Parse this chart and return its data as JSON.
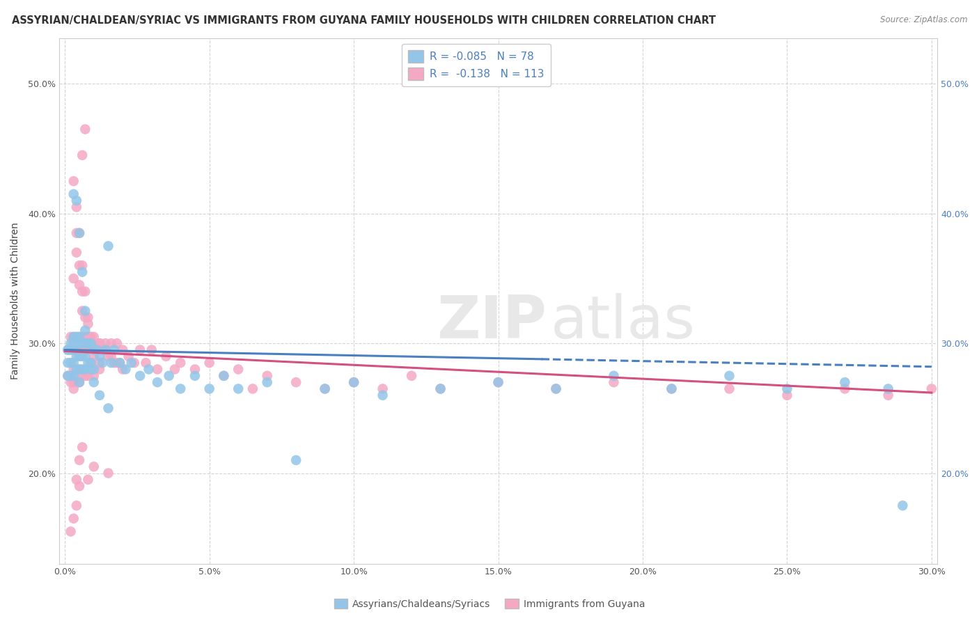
{
  "title": "ASSYRIAN/CHALDEAN/SYRIAC VS IMMIGRANTS FROM GUYANA FAMILY HOUSEHOLDS WITH CHILDREN CORRELATION CHART",
  "source": "Source: ZipAtlas.com",
  "ylabel": "Family Households with Children",
  "xlim": [
    -0.002,
    0.302
  ],
  "ylim": [
    0.13,
    0.535
  ],
  "xtick_vals": [
    0.0,
    0.05,
    0.1,
    0.15,
    0.2,
    0.25,
    0.3
  ],
  "ytick_vals": [
    0.2,
    0.3,
    0.4,
    0.5
  ],
  "series1_label": "Assyrians/Chaldeans/Syriacs",
  "series1_R": -0.085,
  "series1_N": 78,
  "series1_color": "#92C5E8",
  "series1_trend_color": "#4A7FC1",
  "series2_label": "Immigrants from Guyana",
  "series2_R": -0.138,
  "series2_N": 113,
  "series2_color": "#F4A8C4",
  "series2_trend_color": "#D45080",
  "watermark_color": "#e8e8e8",
  "background_color": "#ffffff",
  "grid_color": "#d0d0d0",
  "title_fontsize": 10.5,
  "axis_label_fontsize": 10,
  "tick_fontsize": 9,
  "legend_fontsize": 11,
  "right_tick_color": "#4A7FC1",
  "left_tick_color": "#555555",
  "blue_x": [
    0.001,
    0.001,
    0.001,
    0.002,
    0.002,
    0.002,
    0.002,
    0.003,
    0.003,
    0.003,
    0.003,
    0.003,
    0.004,
    0.004,
    0.004,
    0.004,
    0.005,
    0.005,
    0.005,
    0.005,
    0.005,
    0.006,
    0.006,
    0.006,
    0.007,
    0.007,
    0.007,
    0.007,
    0.008,
    0.008,
    0.009,
    0.009,
    0.01,
    0.01,
    0.011,
    0.012,
    0.013,
    0.014,
    0.015,
    0.016,
    0.017,
    0.019,
    0.021,
    0.023,
    0.026,
    0.029,
    0.032,
    0.036,
    0.04,
    0.045,
    0.05,
    0.055,
    0.06,
    0.07,
    0.08,
    0.09,
    0.1,
    0.11,
    0.13,
    0.15,
    0.17,
    0.19,
    0.21,
    0.23,
    0.25,
    0.27,
    0.285,
    0.29,
    0.003,
    0.004,
    0.005,
    0.006,
    0.007,
    0.008,
    0.009,
    0.01,
    0.012,
    0.015
  ],
  "blue_y": [
    0.295,
    0.285,
    0.275,
    0.3,
    0.295,
    0.285,
    0.275,
    0.305,
    0.3,
    0.295,
    0.285,
    0.275,
    0.305,
    0.3,
    0.29,
    0.28,
    0.305,
    0.3,
    0.29,
    0.28,
    0.27,
    0.3,
    0.29,
    0.28,
    0.31,
    0.3,
    0.29,
    0.28,
    0.3,
    0.285,
    0.3,
    0.285,
    0.295,
    0.28,
    0.295,
    0.29,
    0.285,
    0.295,
    0.375,
    0.285,
    0.295,
    0.285,
    0.28,
    0.285,
    0.275,
    0.28,
    0.27,
    0.275,
    0.265,
    0.275,
    0.265,
    0.275,
    0.265,
    0.27,
    0.21,
    0.265,
    0.27,
    0.26,
    0.265,
    0.27,
    0.265,
    0.275,
    0.265,
    0.275,
    0.265,
    0.27,
    0.265,
    0.175,
    0.415,
    0.41,
    0.385,
    0.355,
    0.325,
    0.3,
    0.28,
    0.27,
    0.26,
    0.25
  ],
  "pink_x": [
    0.001,
    0.001,
    0.002,
    0.002,
    0.002,
    0.003,
    0.003,
    0.003,
    0.003,
    0.004,
    0.004,
    0.004,
    0.005,
    0.005,
    0.005,
    0.005,
    0.006,
    0.006,
    0.006,
    0.007,
    0.007,
    0.007,
    0.008,
    0.008,
    0.008,
    0.009,
    0.009,
    0.01,
    0.01,
    0.01,
    0.011,
    0.012,
    0.013,
    0.014,
    0.015,
    0.016,
    0.017,
    0.018,
    0.019,
    0.02,
    0.022,
    0.024,
    0.026,
    0.028,
    0.03,
    0.032,
    0.035,
    0.038,
    0.04,
    0.045,
    0.05,
    0.055,
    0.06,
    0.065,
    0.07,
    0.08,
    0.09,
    0.1,
    0.11,
    0.12,
    0.13,
    0.15,
    0.17,
    0.19,
    0.21,
    0.23,
    0.25,
    0.27,
    0.285,
    0.3,
    0.003,
    0.004,
    0.004,
    0.005,
    0.005,
    0.006,
    0.006,
    0.007,
    0.008,
    0.009,
    0.01,
    0.011,
    0.012,
    0.014,
    0.016,
    0.018,
    0.02,
    0.003,
    0.004,
    0.005,
    0.006,
    0.007,
    0.008,
    0.009,
    0.01,
    0.012,
    0.002,
    0.003,
    0.004,
    0.005,
    0.006,
    0.007,
    0.008,
    0.01,
    0.012,
    0.015,
    0.002,
    0.003,
    0.004,
    0.005,
    0.006,
    0.008,
    0.01
  ],
  "pink_y": [
    0.295,
    0.275,
    0.305,
    0.295,
    0.275,
    0.305,
    0.295,
    0.28,
    0.27,
    0.305,
    0.295,
    0.275,
    0.305,
    0.295,
    0.28,
    0.27,
    0.305,
    0.295,
    0.275,
    0.305,
    0.295,
    0.275,
    0.305,
    0.295,
    0.275,
    0.305,
    0.285,
    0.305,
    0.295,
    0.275,
    0.295,
    0.3,
    0.295,
    0.3,
    0.29,
    0.3,
    0.285,
    0.3,
    0.285,
    0.295,
    0.29,
    0.285,
    0.295,
    0.285,
    0.295,
    0.28,
    0.29,
    0.28,
    0.285,
    0.28,
    0.285,
    0.275,
    0.28,
    0.265,
    0.275,
    0.27,
    0.265,
    0.27,
    0.265,
    0.275,
    0.265,
    0.27,
    0.265,
    0.27,
    0.265,
    0.265,
    0.26,
    0.265,
    0.26,
    0.265,
    0.35,
    0.385,
    0.37,
    0.36,
    0.345,
    0.34,
    0.325,
    0.32,
    0.315,
    0.305,
    0.3,
    0.295,
    0.3,
    0.295,
    0.29,
    0.285,
    0.28,
    0.425,
    0.405,
    0.385,
    0.36,
    0.34,
    0.32,
    0.3,
    0.29,
    0.28,
    0.155,
    0.165,
    0.175,
    0.19,
    0.445,
    0.465,
    0.305,
    0.295,
    0.285,
    0.2,
    0.27,
    0.265,
    0.195,
    0.21,
    0.22,
    0.195,
    0.205
  ]
}
